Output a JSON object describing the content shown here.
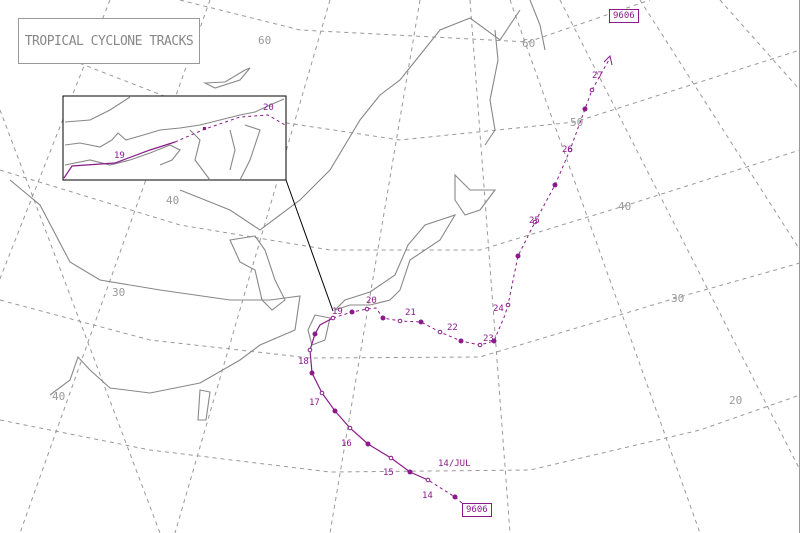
{
  "title": "TROPICAL CYCLONE TRACKS",
  "cyclone": {
    "id": "9606",
    "track_color": "#8b1a8b",
    "start_label": "14/JUL",
    "day_labels": [
      "14",
      "15",
      "16",
      "17",
      "18",
      "19",
      "20",
      "21",
      "22",
      "23",
      "24",
      "25",
      "26",
      "27"
    ]
  },
  "inset": {
    "day_labels": [
      "19",
      "20"
    ]
  },
  "latitude_labels": [
    "60",
    "50",
    "40",
    "30",
    "20"
  ],
  "longitude_labels": [
    "60",
    "40",
    "30",
    "40"
  ]
}
